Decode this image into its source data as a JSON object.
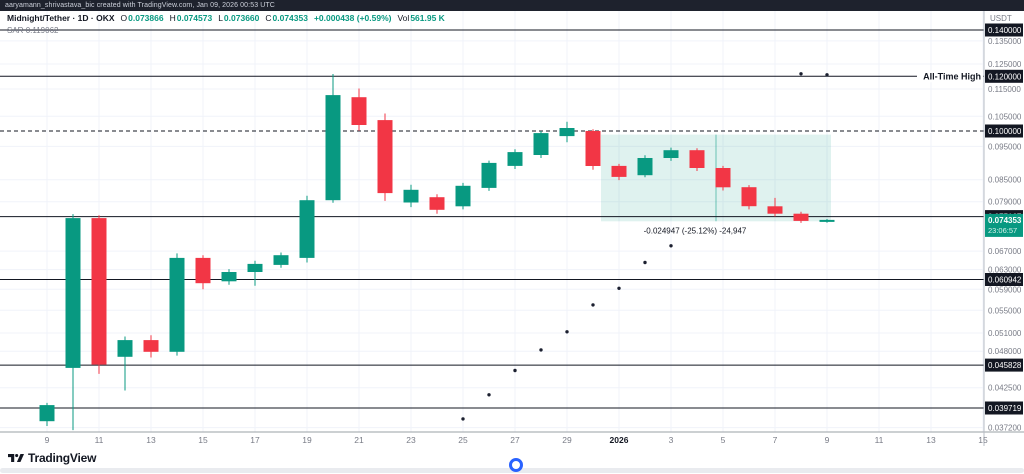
{
  "attribution": "aaryamann_shrivastava_bic created with TradingView.com, Jan 09, 2026 00:53 UTC",
  "header": {
    "title": "Midnight/Tether · 1D · OKX",
    "ohlc": [
      {
        "label": "O",
        "value": "0.073866"
      },
      {
        "label": "H",
        "value": "0.074573"
      },
      {
        "label": "L",
        "value": "0.073660"
      },
      {
        "label": "C",
        "value": "0.074353"
      }
    ],
    "change": "+0.000438 (+0.59%)",
    "volume_label": "Vol",
    "volume_value": "561.95 K"
  },
  "indicator": {
    "name": "SAR",
    "value": "0.119062"
  },
  "price_axis": {
    "unit": "USDT",
    "ticks": [
      {
        "price": 0.135,
        "label": "0.135000"
      },
      {
        "price": 0.125,
        "label": "0.125000"
      },
      {
        "price": 0.115,
        "label": "0.115000"
      },
      {
        "price": 0.105,
        "label": "0.105000"
      },
      {
        "price": 0.095,
        "label": "0.095000"
      },
      {
        "price": 0.085,
        "label": "0.085000"
      },
      {
        "price": 0.079,
        "label": "0.079000"
      },
      {
        "price": 0.067,
        "label": "0.067000"
      },
      {
        "price": 0.063,
        "label": "0.063000"
      },
      {
        "price": 0.059,
        "label": "0.059000"
      },
      {
        "price": 0.055,
        "label": "0.055000"
      },
      {
        "price": 0.051,
        "label": "0.051000"
      },
      {
        "price": 0.048,
        "label": "0.048000"
      },
      {
        "price": 0.0425,
        "label": "0.042500"
      },
      {
        "price": 0.0372,
        "label": "0.037200"
      }
    ],
    "level_badges": [
      {
        "price": 0.14,
        "label": "0.140000"
      },
      {
        "price": 0.12,
        "label": "0.120000"
      },
      {
        "price": 0.1,
        "label": "0.100000"
      },
      {
        "price": 0.075167,
        "label": "0.075167"
      },
      {
        "price": 0.060942,
        "label": "0.060942"
      },
      {
        "price": 0.045828,
        "label": "0.045828"
      },
      {
        "price": 0.039719,
        "label": "0.039719"
      }
    ],
    "last_price_badge": {
      "price": 0.074353,
      "label": "0.074353",
      "countdown": "23:06:57"
    }
  },
  "time_axis": {
    "labels": [
      "9",
      "11",
      "13",
      "15",
      "17",
      "19",
      "21",
      "23",
      "25",
      "27",
      "29",
      "2026",
      "3",
      "5",
      "7",
      "9",
      "11",
      "13",
      "15"
    ]
  },
  "chart_data": {
    "type": "candlestick",
    "symbol": "Midnight/Tether",
    "interval": "1D",
    "exchange": "OKX",
    "y_scale": "log",
    "candle_columns": [
      "open",
      "high",
      "low",
      "close"
    ],
    "candles": [
      [
        0.038,
        0.0404,
        0.0374,
        0.0401
      ],
      [
        0.0454,
        0.0758,
        0.0369,
        0.0748
      ],
      [
        0.0748,
        0.0755,
        0.0445,
        0.0459
      ],
      [
        0.0471,
        0.0504,
        0.0421,
        0.0498
      ],
      [
        0.0498,
        0.0506,
        0.047,
        0.0479
      ],
      [
        0.0479,
        0.0665,
        0.0473,
        0.0655
      ],
      [
        0.0655,
        0.0661,
        0.059,
        0.0602
      ],
      [
        0.0606,
        0.0631,
        0.0599,
        0.0625
      ],
      [
        0.0625,
        0.0649,
        0.0597,
        0.0642
      ],
      [
        0.064,
        0.0667,
        0.0634,
        0.0661
      ],
      [
        0.0655,
        0.0806,
        0.0645,
        0.0794
      ],
      [
        0.0794,
        0.1209,
        0.0787,
        0.1127
      ],
      [
        0.1119,
        0.1152,
        0.1001,
        0.102
      ],
      [
        0.1037,
        0.106,
        0.0792,
        0.0813
      ],
      [
        0.0788,
        0.0836,
        0.0776,
        0.0822
      ],
      [
        0.0802,
        0.081,
        0.0759,
        0.0769
      ],
      [
        0.0778,
        0.0841,
        0.077,
        0.0833
      ],
      [
        0.0827,
        0.0906,
        0.0819,
        0.0899
      ],
      [
        0.089,
        0.0941,
        0.0881,
        0.0932
      ],
      [
        0.0923,
        0.1,
        0.0914,
        0.0993
      ],
      [
        0.0983,
        0.1031,
        0.0963,
        0.101
      ],
      [
        0.1,
        0.1006,
        0.0879,
        0.089
      ],
      [
        0.089,
        0.0896,
        0.0849,
        0.0858
      ],
      [
        0.0863,
        0.0922,
        0.0857,
        0.0914
      ],
      [
        0.0914,
        0.0946,
        0.0905,
        0.0938
      ],
      [
        0.0938,
        0.0944,
        0.0875,
        0.0884
      ],
      [
        0.0884,
        0.089,
        0.082,
        0.0829
      ],
      [
        0.0829,
        0.0835,
        0.077,
        0.0778
      ],
      [
        0.0778,
        0.08,
        0.0752,
        0.0759
      ],
      [
        0.0759,
        0.0764,
        0.0736,
        0.0741
      ],
      [
        0.073866,
        0.074573,
        0.07366,
        0.074353
      ]
    ],
    "sar_dots": [
      [
        17,
        0.0383
      ],
      [
        18,
        0.0415
      ],
      [
        19,
        0.045
      ],
      [
        20,
        0.0482
      ],
      [
        21,
        0.0512
      ],
      [
        22,
        0.056
      ],
      [
        23,
        0.0592
      ],
      [
        24,
        0.0645
      ],
      [
        25,
        0.0682
      ],
      [
        30,
        0.121
      ],
      [
        31,
        0.1206
      ]
    ],
    "levels": [
      {
        "price": 0.14,
        "style": "solid"
      },
      {
        "price": 0.12,
        "style": "solid",
        "label": "All-Time High"
      },
      {
        "price": 0.1,
        "style": "dashed"
      },
      {
        "price": 0.075167,
        "style": "solid"
      },
      {
        "price": 0.060942,
        "style": "solid"
      },
      {
        "price": 0.045828,
        "style": "solid"
      },
      {
        "price": 0.039719,
        "style": "solid"
      }
    ],
    "measure": {
      "text": "-0.024947 (-25.12%) -24,947",
      "price_top": 0.0988,
      "price_bottom": 0.074
    }
  },
  "footer": {
    "logo_text": "TradingView"
  },
  "colors": {
    "up": "#089981",
    "down": "#f23645",
    "accent_blue": "#2962ff",
    "line_black": "#131722"
  }
}
